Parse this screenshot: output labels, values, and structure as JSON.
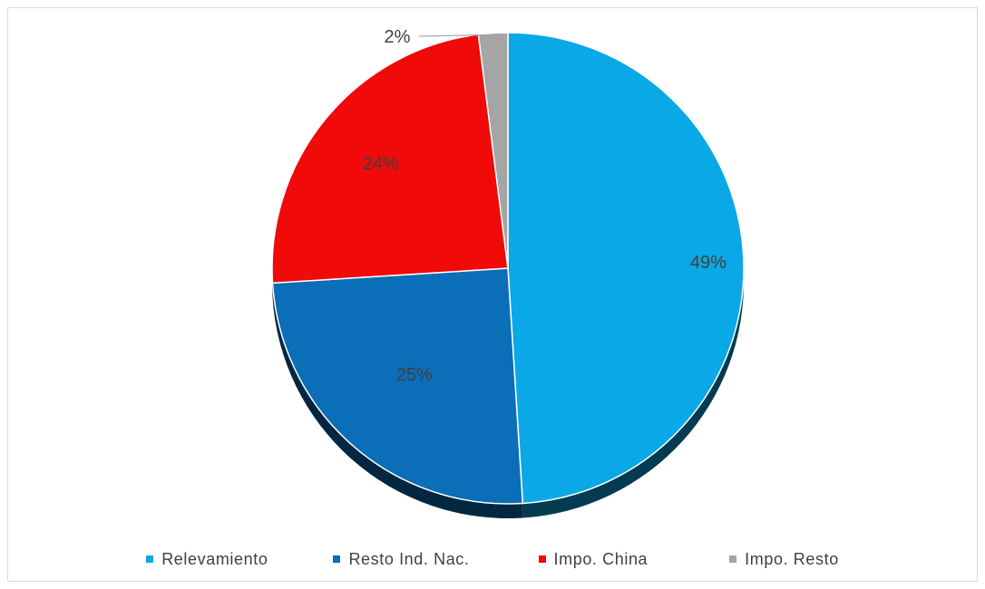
{
  "chart_data": {
    "type": "pie",
    "title": "",
    "categories": [
      "Relevamiento",
      "Resto Ind. Nac.",
      "Impo. China",
      "Impo. Resto"
    ],
    "values": [
      49,
      25,
      24,
      2
    ],
    "data_labels": [
      "49%",
      "25%",
      "24%",
      "2%"
    ],
    "colors": [
      "#0aa8e6",
      "#0a6eb9",
      "#f00a0a",
      "#a5a5a5"
    ],
    "legend_position": "bottom",
    "start_angle_deg": 0,
    "direction": "clockwise",
    "style": "3d-shadow"
  },
  "legend": {
    "items": [
      {
        "label": "Relevamiento",
        "color": "#0aa8e6"
      },
      {
        "label": "Resto Ind. Nac.",
        "color": "#0a6eb9"
      },
      {
        "label": "Impo. China",
        "color": "#f00a0a"
      },
      {
        "label": "Impo. Resto",
        "color": "#a5a5a5"
      }
    ]
  }
}
